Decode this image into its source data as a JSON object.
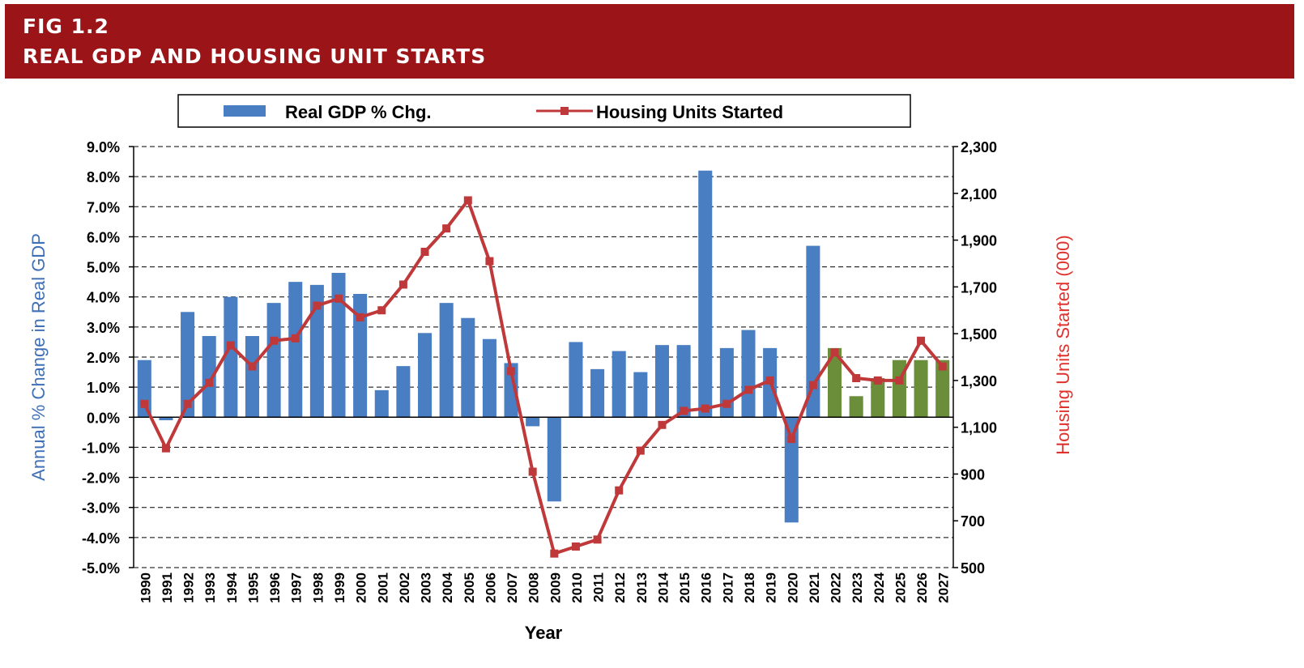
{
  "header": {
    "fig_label": "FIG 1.2",
    "title": "REAL GDP AND HOUSING UNIT STARTS"
  },
  "colors": {
    "banner": "#9b1418",
    "bar_actual": "#4a7ec3",
    "bar_forecast": "#6b8e3b",
    "line": "#c0393a",
    "left_axis_label": "#3f6fb7",
    "right_axis_label": "#e0322d"
  },
  "chart_data": {
    "type": "bar",
    "x": [
      1990,
      1991,
      1992,
      1993,
      1994,
      1995,
      1996,
      1997,
      1998,
      1999,
      2000,
      2001,
      2002,
      2003,
      2004,
      2005,
      2006,
      2007,
      2008,
      2009,
      2010,
      2011,
      2012,
      2013,
      2014,
      2015,
      2016,
      2017,
      2018,
      2019,
      2020,
      2021,
      2022,
      2023,
      2024,
      2025,
      2026,
      2027
    ],
    "x_tick_labels": [
      "1990",
      "1991",
      "1992",
      "1993",
      "1994",
      "1995",
      "1996",
      "1997",
      "1998",
      "1999",
      "2000",
      "2001",
      "2002",
      "2003",
      "2004",
      "2005",
      "2006",
      "2007",
      "2008",
      "2009",
      "2010",
      "2011",
      "2012",
      "2013",
      "2014",
      "2015",
      "2016",
      "2017",
      "2018",
      "2019",
      "2020",
      "2021",
      "2022",
      "2023",
      "2024",
      "2025",
      "2026",
      "2027"
    ],
    "forecast_from": 2022,
    "series": [
      {
        "name": "Real GDP % Chg.",
        "type": "bar",
        "axis": "left",
        "values": [
          1.9,
          -0.1,
          3.5,
          2.7,
          4.0,
          2.7,
          3.8,
          4.5,
          4.4,
          4.8,
          4.1,
          0.9,
          1.7,
          2.8,
          3.8,
          3.3,
          2.6,
          1.8,
          -0.3,
          -2.8,
          2.5,
          1.6,
          2.2,
          1.5,
          2.4,
          2.4,
          8.2,
          2.3,
          2.9,
          2.3,
          -3.5,
          5.7,
          2.3,
          0.7,
          1.3,
          1.9,
          1.9,
          1.9
        ]
      },
      {
        "name": "Housing Units Started",
        "type": "line",
        "axis": "right",
        "values": [
          1200,
          1010,
          1200,
          1290,
          1450,
          1360,
          1470,
          1480,
          1620,
          1650,
          1570,
          1600,
          1710,
          1850,
          1950,
          2070,
          1810,
          1340,
          910,
          560,
          590,
          620,
          830,
          1000,
          1110,
          1170,
          1180,
          1200,
          1260,
          1300,
          1050,
          1280,
          1420,
          1310,
          1300,
          1300,
          1470,
          1360
        ]
      }
    ],
    "left_axis": {
      "label": "Annual % Change in Real GDP",
      "range": [
        -5.0,
        9.0
      ],
      "step": 1.0,
      "tick_labels": [
        "9.0%",
        "8.0%",
        "7.0%",
        "6.0%",
        "5.0%",
        "4.0%",
        "3.0%",
        "2.0%",
        "1.0%",
        "0.0%",
        "-1.0%",
        "-2.0%",
        "-3.0%",
        "-4.0%",
        "-5.0%"
      ]
    },
    "right_axis": {
      "label": "Housing Units Started (000)",
      "range": [
        500,
        2300
      ],
      "step": 200,
      "tick_labels": [
        "2,300",
        "2,100",
        "1,900",
        "1,700",
        "1,500",
        "1,300",
        "1,100",
        "900",
        "700",
        "500"
      ]
    },
    "xlabel": "Year",
    "grid": "dashed horizontal",
    "legend_position": "top"
  }
}
